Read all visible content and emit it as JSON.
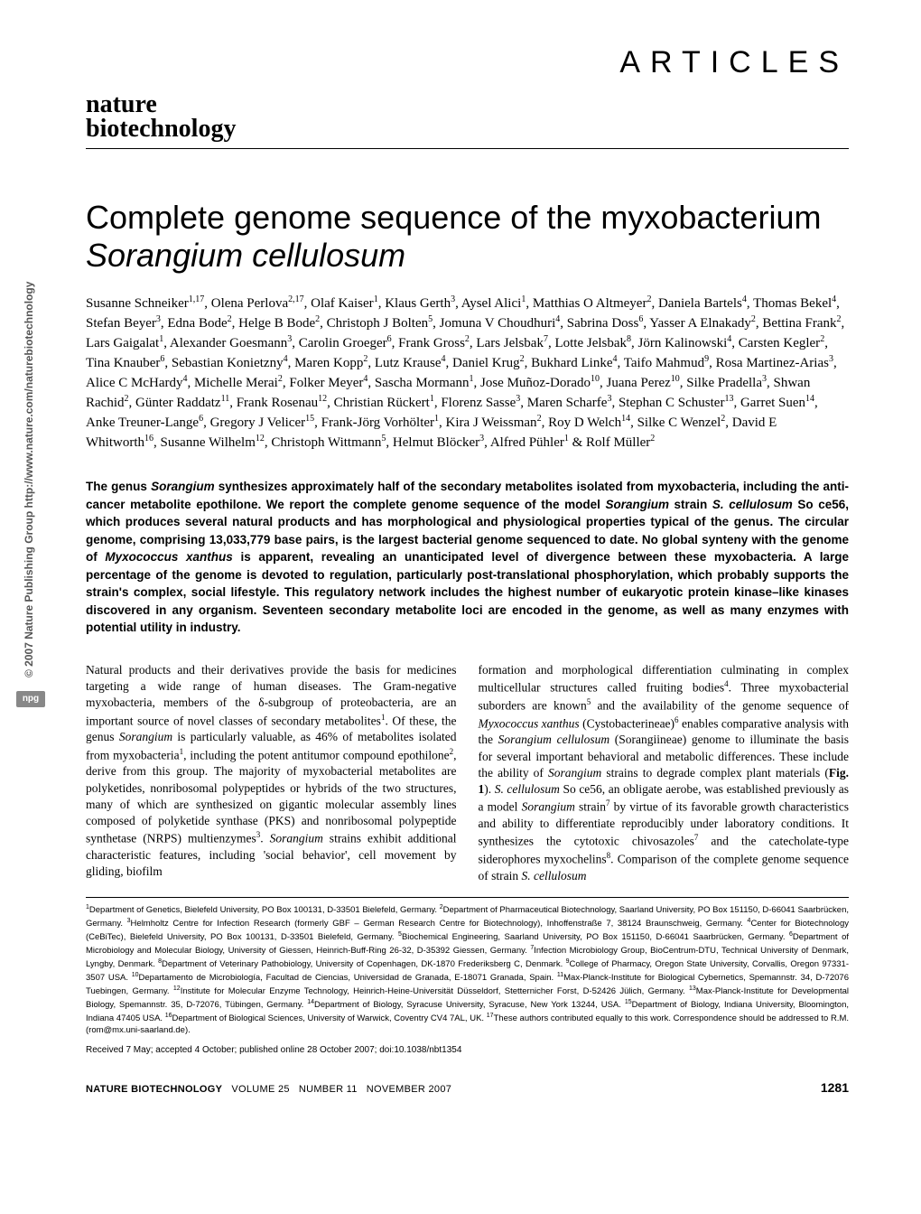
{
  "sidebar": {
    "npg": "npg",
    "copyright": "© 2007 Nature Publishing Group  http://www.nature.com/naturebiotechnology"
  },
  "header": {
    "section_label": "ARTICLES",
    "journal_line1": "nature",
    "journal_line2": "biotechnology"
  },
  "title": {
    "line1": "Complete genome sequence of the myxobacterium",
    "line2_italic": "Sorangium cellulosum"
  },
  "authors_html": "Susanne Schneiker<sup>1,17</sup>, Olena Perlova<sup>2,17</sup>, Olaf Kaiser<sup>1</sup>, Klaus Gerth<sup>3</sup>, Aysel Alici<sup>1</sup>, Matthias O Altmeyer<sup>2</sup>, Daniela Bartels<sup>4</sup>, Thomas Bekel<sup>4</sup>, Stefan Beyer<sup>3</sup>, Edna Bode<sup>2</sup>, Helge B Bode<sup>2</sup>, Christoph J Bolten<sup>5</sup>, Jomuna V Choudhuri<sup>4</sup>, Sabrina Doss<sup>6</sup>, Yasser A Elnakady<sup>2</sup>, Bettina Frank<sup>2</sup>, Lars Gaigalat<sup>1</sup>, Alexander Goesmann<sup>3</sup>, Carolin Groeger<sup>6</sup>, Frank Gross<sup>2</sup>, Lars Jelsbak<sup>7</sup>, Lotte Jelsbak<sup>8</sup>, Jörn Kalinowski<sup>4</sup>, Carsten Kegler<sup>2</sup>, Tina Knauber<sup>6</sup>, Sebastian Konietzny<sup>4</sup>, Maren Kopp<sup>2</sup>, Lutz Krause<sup>4</sup>, Daniel Krug<sup>2</sup>, Bukhard Linke<sup>4</sup>, Taifo Mahmud<sup>9</sup>, Rosa Martinez-Arias<sup>3</sup>, Alice C McHardy<sup>4</sup>, Michelle Merai<sup>2</sup>, Folker Meyer<sup>4</sup>, Sascha Mormann<sup>1</sup>, Jose Muñoz-Dorado<sup>10</sup>, Juana Perez<sup>10</sup>, Silke Pradella<sup>3</sup>, Shwan Rachid<sup>2</sup>, Günter Raddatz<sup>11</sup>, Frank Rosenau<sup>12</sup>, Christian Rückert<sup>1</sup>, Florenz Sasse<sup>3</sup>, Maren Scharfe<sup>3</sup>, Stephan C Schuster<sup>13</sup>, Garret Suen<sup>14</sup>, Anke Treuner-Lange<sup>6</sup>, Gregory J Velicer<sup>15</sup>, Frank-Jörg Vorhölter<sup>1</sup>, Kira J Weissman<sup>2</sup>, Roy D Welch<sup>14</sup>, Silke C Wenzel<sup>2</sup>, David E Whitworth<sup>16</sup>, Susanne Wilhelm<sup>12</sup>, Christoph Wittmann<sup>5</sup>, Helmut Blöcker<sup>3</sup>, Alfred Pühler<sup>1</sup> & Rolf Müller<sup>2</sup>",
  "abstract": "The genus <span class='italic'>Sorangium</span> synthesizes approximately half of the secondary metabolites isolated from myxobacteria, including the anti-cancer metabolite epothilone. We report the complete genome sequence of the model <span class='italic'>Sorangium</span> strain <span class='italic'>S. cellulosum</span> So ce56, which produces several natural products and has morphological and physiological properties typical of the genus. The circular genome, comprising 13,033,779 base pairs, is the largest bacterial genome sequenced to date. No global synteny with the genome of <span class='italic'>Myxococcus xanthus</span> is apparent, revealing an unanticipated level of divergence between these myxobacteria. A large percentage of the genome is devoted to regulation, particularly post-translational phosphorylation, which probably supports the strain's complex, social lifestyle. This regulatory network includes the highest number of eukaryotic protein kinase–like kinases discovered in any organism. Seventeen secondary metabolite loci are encoded in the genome, as well as many enzymes with potential utility in industry.",
  "body": {
    "col1": "Natural products and their derivatives provide the basis for medicines targeting a wide range of human diseases. The Gram-negative myxobacteria, members of the δ-subgroup of proteobacteria, are an important source of novel classes of secondary metabolites<sup>1</sup>. Of these, the genus <span class='italic'>Sorangium</span> is particularly valuable, as 46% of metabolites isolated from myxobacteria<sup>1</sup>, including the potent antitumor compound epothilone<sup>2</sup>, derive from this group. The majority of myxobacterial metabolites are polyketides, nonribosomal polypeptides or hybrids of the two structures, many of which are synthesized on gigantic molecular assembly lines composed of polyketide synthase (PKS) and nonribosomal polypeptide synthetase (NRPS) multienzymes<sup>3</sup>. <span class='italic'>Sorangium</span> strains exhibit additional characteristic features, including 'social behavior', cell movement by gliding, biofilm",
    "col2": "formation and morphological differentiation culminating in complex multicellular structures called fruiting bodies<sup>4</sup>. Three myxobacterial suborders are known<sup>5</sup> and the availability of the genome sequence of <span class='italic'>Myxococcus xanthus</span> (Cystobacterineae)<sup>6</sup> enables comparative analysis with the <span class='italic'>Sorangium cellulosum</span> (Sorangiineae) genome to illuminate the basis for several important behavioral and metabolic differences. These include the ability of <span class='italic'>Sorangium</span> strains to degrade complex plant materials (<b>Fig. 1</b>). <span class='italic'>S. cellulosum</span> So ce56, an obligate aerobe, was established previously as a model <span class='italic'>Sorangium</span> strain<sup>7</sup> by virtue of its favorable growth characteristics and ability to differentiate reproducibly under laboratory conditions. It synthesizes the cytotoxic chivosazoles<sup>7</sup> and the catecholate-type siderophores myxochelins<sup>8</sup>. Comparison of the complete genome sequence of strain <span class='italic'>S. cellulosum</span>"
  },
  "affiliations": "<sup>1</sup>Department of Genetics, Bielefeld University, PO Box 100131, D-33501 Bielefeld, Germany. <sup>2</sup>Department of Pharmaceutical Biotechnology, Saarland University, PO Box 151150, D-66041 Saarbrücken, Germany. <sup>3</sup>Helmholtz Centre for Infection Research (formerly GBF – German Research Centre for Biotechnology), Inhoffenstraße 7, 38124 Braunschweig, Germany. <sup>4</sup>Center for Biotechnology (CeBiTec), Bielefeld University, PO Box 100131, D-33501 Bielefeld, Germany. <sup>5</sup>Biochemical Engineering, Saarland University, PO Box 151150, D-66041 Saarbrücken, Germany. <sup>6</sup>Department of Microbiology and Molecular Biology, University of Giessen, Heinrich-Buff-Ring 26-32, D-35392 Giessen, Germany. <sup>7</sup>Infection Microbiology Group, BioCentrum-DTU, Technical University of Denmark, Lyngby, Denmark. <sup>8</sup>Department of Veterinary Pathobiology, University of Copenhagen, DK-1870 Frederiksberg C, Denmark. <sup>9</sup>College of Pharmacy, Oregon State University, Corvallis, Oregon 97331-3507 USA. <sup>10</sup>Departamento de Microbiología, Facultad de Ciencias, Universidad de Granada, E-18071 Granada, Spain. <sup>11</sup>Max-Planck-Institute for Biological Cybernetics, Spemannstr. 34, D-72076 Tuebingen, Germany. <sup>12</sup>Institute for Molecular Enzyme Technology, Heinrich-Heine-Universität Düsseldorf, Stetternicher Forst, D-52426 Jülich, Germany. <sup>13</sup>Max-Planck-Institute for Developmental Biology, Spemannstr. 35, D-72076, Tübingen, Germany. <sup>14</sup>Department of Biology, Syracuse University, Syracuse, New York 13244, USA. <sup>15</sup>Department of Biology, Indiana University, Bloomington, Indiana 47405 USA. <sup>16</sup>Department of Biological Sciences, University of Warwick, Coventry CV4 7AL, UK. <sup>17</sup>These authors contributed equally to this work. Correspondence should be addressed to R.M. (rom@mx.uni-saarland.de).",
  "received": "Received 7 May; accepted 4 October; published online 28 October 2007; doi:10.1038/nbt1354",
  "footer": {
    "journal": "NATURE BIOTECHNOLOGY",
    "volume": "VOLUME 25",
    "number": "NUMBER 11",
    "date": "NOVEMBER 2007",
    "page": "1281"
  }
}
